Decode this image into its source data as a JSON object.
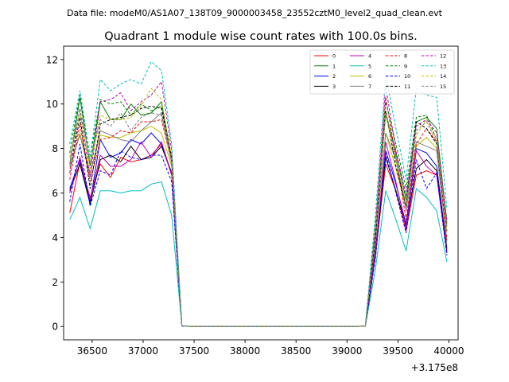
{
  "figure": {
    "suptitle": "Data file: modeM0/AS1A07_138T09_9000003458_23552cztM0_level2_quad_clean.evt"
  },
  "chart_data": {
    "type": "line",
    "title": "Quadrant 1 module wise count rates with 100.0s bins.",
    "xlabel": "",
    "ylabel": "",
    "x_offset_label": "+3.175e8",
    "xlim": [
      36220,
      40090
    ],
    "ylim": [
      -0.6,
      12.6
    ],
    "xticks": [
      36500,
      37000,
      37500,
      38000,
      38500,
      39000,
      39500,
      40000
    ],
    "yticks": [
      0,
      2,
      4,
      6,
      8,
      10,
      12
    ],
    "grid": false,
    "legend_location": "upper-right",
    "legend_columns": 4,
    "x": [
      36280,
      36380,
      36480,
      36580,
      36680,
      36780,
      36880,
      36980,
      37080,
      37180,
      37280,
      37380,
      37480,
      37580,
      37680,
      37780,
      37880,
      37980,
      38080,
      38180,
      38280,
      38380,
      38480,
      38580,
      38680,
      38780,
      38880,
      38980,
      39080,
      39180,
      39280,
      39380,
      39480,
      39580,
      39680,
      39780,
      39880,
      39980
    ],
    "series": [
      {
        "name": "0",
        "color": "#ff0000",
        "dash": "solid",
        "values": [
          5.1,
          7.4,
          5.8,
          7.3,
          6.7,
          7.6,
          7.4,
          7.5,
          7.7,
          8.2,
          6.8,
          0.02,
          0,
          0,
          0,
          0,
          0,
          0,
          0,
          0,
          0,
          0,
          0,
          0,
          0,
          0,
          0,
          0,
          0,
          0.02,
          3.2,
          7.3,
          6.1,
          4.3,
          6.8,
          7.0,
          6.8,
          3.3
        ]
      },
      {
        "name": "1",
        "color": "#008000",
        "dash": "solid",
        "values": [
          7.3,
          10.3,
          7.2,
          10.1,
          9.3,
          9.3,
          10.0,
          9.5,
          9.6,
          10.1,
          7.5,
          0.02,
          0,
          0,
          0,
          0,
          0,
          0,
          0,
          0,
          0,
          0,
          0,
          0,
          0,
          0,
          0,
          0,
          0,
          0.02,
          4.5,
          9.6,
          7.8,
          5.7,
          9.2,
          9.4,
          8.9,
          4.6
        ]
      },
      {
        "name": "2",
        "color": "#0000ff",
        "dash": "solid",
        "values": [
          6.2,
          7.5,
          5.6,
          8.4,
          7.6,
          7.8,
          8.4,
          8.2,
          8.7,
          8.2,
          6.9,
          0.02,
          0,
          0,
          0,
          0,
          0,
          0,
          0,
          0,
          0,
          0,
          0,
          0,
          0,
          0,
          0,
          0,
          0,
          0.02,
          3.5,
          7.9,
          6.4,
          4.6,
          8.0,
          7.8,
          7.2,
          3.5
        ]
      },
      {
        "name": "3",
        "color": "#000000",
        "dash": "solid",
        "values": [
          6.1,
          7.3,
          5.5,
          7.5,
          7.7,
          7.4,
          8.1,
          7.5,
          7.6,
          8.1,
          6.9,
          0.02,
          0,
          0,
          0,
          0,
          0,
          0,
          0,
          0,
          0,
          0,
          0,
          0,
          0,
          0,
          0,
          0,
          0,
          0.02,
          3.4,
          7.6,
          6.1,
          4.5,
          7.1,
          7.5,
          7.0,
          3.4
        ]
      },
      {
        "name": "4",
        "color": "#bf00bf",
        "dash": "solid",
        "values": [
          6.0,
          7.6,
          5.7,
          7.7,
          7.2,
          7.2,
          7.5,
          8.3,
          7.6,
          8.3,
          6.8,
          0.02,
          0,
          0,
          0,
          0,
          0,
          0,
          0,
          0,
          0,
          0,
          0,
          0,
          0,
          0,
          0,
          0,
          0,
          0.02,
          3.3,
          8.3,
          6.5,
          4.4,
          7.9,
          7.2,
          6.8,
          3.3
        ]
      },
      {
        "name": "5",
        "color": "#00bfbf",
        "dash": "solid",
        "values": [
          4.8,
          5.8,
          4.4,
          6.1,
          6.1,
          6.0,
          6.1,
          6.1,
          6.4,
          6.5,
          5.0,
          0.02,
          0,
          0,
          0,
          0,
          0,
          0,
          0,
          0,
          0,
          0,
          0,
          0,
          0,
          0,
          0,
          0,
          0,
          0.02,
          2.6,
          6.1,
          4.8,
          3.4,
          6.2,
          5.8,
          5.2,
          2.9
        ]
      },
      {
        "name": "6",
        "color": "#bfbf00",
        "dash": "solid",
        "values": [
          7.1,
          8.7,
          6.9,
          8.6,
          8.5,
          8.5,
          8.7,
          8.8,
          9.0,
          8.7,
          7.2,
          0.02,
          0,
          0,
          0,
          0,
          0,
          0,
          0,
          0,
          0,
          0,
          0,
          0,
          0,
          0,
          0,
          0,
          0,
          0.02,
          3.9,
          8.7,
          7.1,
          5.3,
          8.1,
          8.5,
          8.0,
          3.9
        ]
      },
      {
        "name": "7",
        "color": "#808080",
        "dash": "solid",
        "values": [
          7.2,
          8.6,
          6.8,
          8.8,
          8.6,
          8.4,
          8.3,
          8.8,
          9.2,
          9.6,
          7.4,
          0.02,
          0,
          0,
          0,
          0,
          0,
          0,
          0,
          0,
          0,
          0,
          0,
          0,
          0,
          0,
          0,
          0,
          0,
          0.02,
          4.0,
          8.7,
          7.5,
          5.2,
          8.3,
          8.1,
          7.9,
          3.8
        ]
      },
      {
        "name": "8",
        "color": "#ff0000",
        "dash": "dashed",
        "values": [
          6.6,
          9.1,
          6.5,
          8.4,
          8.5,
          8.8,
          8.7,
          9.2,
          9.2,
          9.3,
          7.4,
          0.02,
          0,
          0,
          0,
          0,
          0,
          0,
          0,
          0,
          0,
          0,
          0,
          0,
          0,
          0,
          0,
          0,
          0,
          0.02,
          4.2,
          10.3,
          7.6,
          4.8,
          8.2,
          8.9,
          8.3,
          3.9
        ]
      },
      {
        "name": "9",
        "color": "#008000",
        "dash": "dashed",
        "values": [
          7.8,
          10.4,
          7.6,
          10.2,
          10.0,
          10.1,
          9.5,
          10.0,
          9.7,
          9.9,
          7.6,
          0.02,
          0,
          0,
          0,
          0,
          0,
          0,
          0,
          0,
          0,
          0,
          0,
          0,
          0,
          0,
          0,
          0,
          0,
          0.02,
          4.6,
          10.1,
          8.2,
          6.2,
          9.4,
          9.5,
          8.4,
          4.8
        ]
      },
      {
        "name": "10",
        "color": "#0000ff",
        "dash": "dashed",
        "values": [
          5.6,
          8.2,
          5.4,
          7.0,
          6.8,
          7.9,
          7.6,
          7.5,
          7.7,
          7.7,
          6.5,
          0.02,
          0,
          0,
          0,
          0,
          0,
          0,
          0,
          0,
          0,
          0,
          0,
          0,
          0,
          0,
          0,
          0,
          0,
          0.02,
          3.1,
          7.8,
          6.0,
          4.2,
          7.5,
          6.2,
          6.9,
          3.2
        ]
      },
      {
        "name": "11",
        "color": "#000000",
        "dash": "dashed",
        "values": [
          6.9,
          9.4,
          6.2,
          9.1,
          9.3,
          9.4,
          9.5,
          9.8,
          9.9,
          9.8,
          7.6,
          0.02,
          0,
          0,
          0,
          0,
          0,
          0,
          0,
          0,
          0,
          0,
          0,
          0,
          0,
          0,
          0,
          0,
          0,
          0.02,
          4.0,
          9.7,
          7.2,
          5.4,
          9.2,
          8.9,
          8.2,
          4.3
        ]
      },
      {
        "name": "12",
        "color": "#bf00bf",
        "dash": "dashed",
        "values": [
          6.9,
          9.8,
          6.7,
          10.1,
          10.2,
          10.5,
          9.7,
          10.1,
          10.4,
          11.0,
          7.9,
          0.02,
          0,
          0,
          0,
          0,
          0,
          0,
          0,
          0,
          0,
          0,
          0,
          0,
          0,
          0,
          0,
          0,
          0,
          0.02,
          4.5,
          10.8,
          7.9,
          5.9,
          9.0,
          9.3,
          8.7,
          4.7
        ]
      },
      {
        "name": "13",
        "color": "#00bfbf",
        "dash": "dashed",
        "values": [
          8.2,
          10.6,
          7.6,
          11.1,
          10.6,
          10.9,
          11.1,
          10.9,
          11.9,
          11.5,
          8.2,
          0.02,
          0,
          0,
          0,
          0,
          0,
          0,
          0,
          0,
          0,
          0,
          0,
          0,
          0,
          0,
          0,
          0,
          0,
          0.02,
          5.1,
          11.3,
          8.9,
          6.6,
          10.7,
          10.4,
          10.3,
          5.3
        ]
      },
      {
        "name": "14",
        "color": "#bfbf00",
        "dash": "dashed",
        "values": [
          7.6,
          9.6,
          7.1,
          9.5,
          9.3,
          9.3,
          9.4,
          9.9,
          10.7,
          10.2,
          7.6,
          0.02,
          0,
          0,
          0,
          0,
          0,
          0,
          0,
          0,
          0,
          0,
          0,
          0,
          0,
          0,
          0,
          0,
          0,
          0.02,
          4.3,
          9.5,
          7.5,
          5.5,
          8.6,
          9.3,
          8.4,
          4.3
        ]
      },
      {
        "name": "15",
        "color": "#808080",
        "dash": "dashed",
        "values": [
          7.3,
          9.8,
          7.4,
          9.3,
          9.0,
          9.6,
          8.8,
          9.4,
          9.6,
          9.5,
          7.3,
          0.02,
          0,
          0,
          0,
          0,
          0,
          0,
          0,
          0,
          0,
          0,
          0,
          0,
          0,
          0,
          0,
          0,
          0,
          0.02,
          4.4,
          9.6,
          7.6,
          5.4,
          8.8,
          9.2,
          8.3,
          4.5
        ]
      }
    ]
  }
}
